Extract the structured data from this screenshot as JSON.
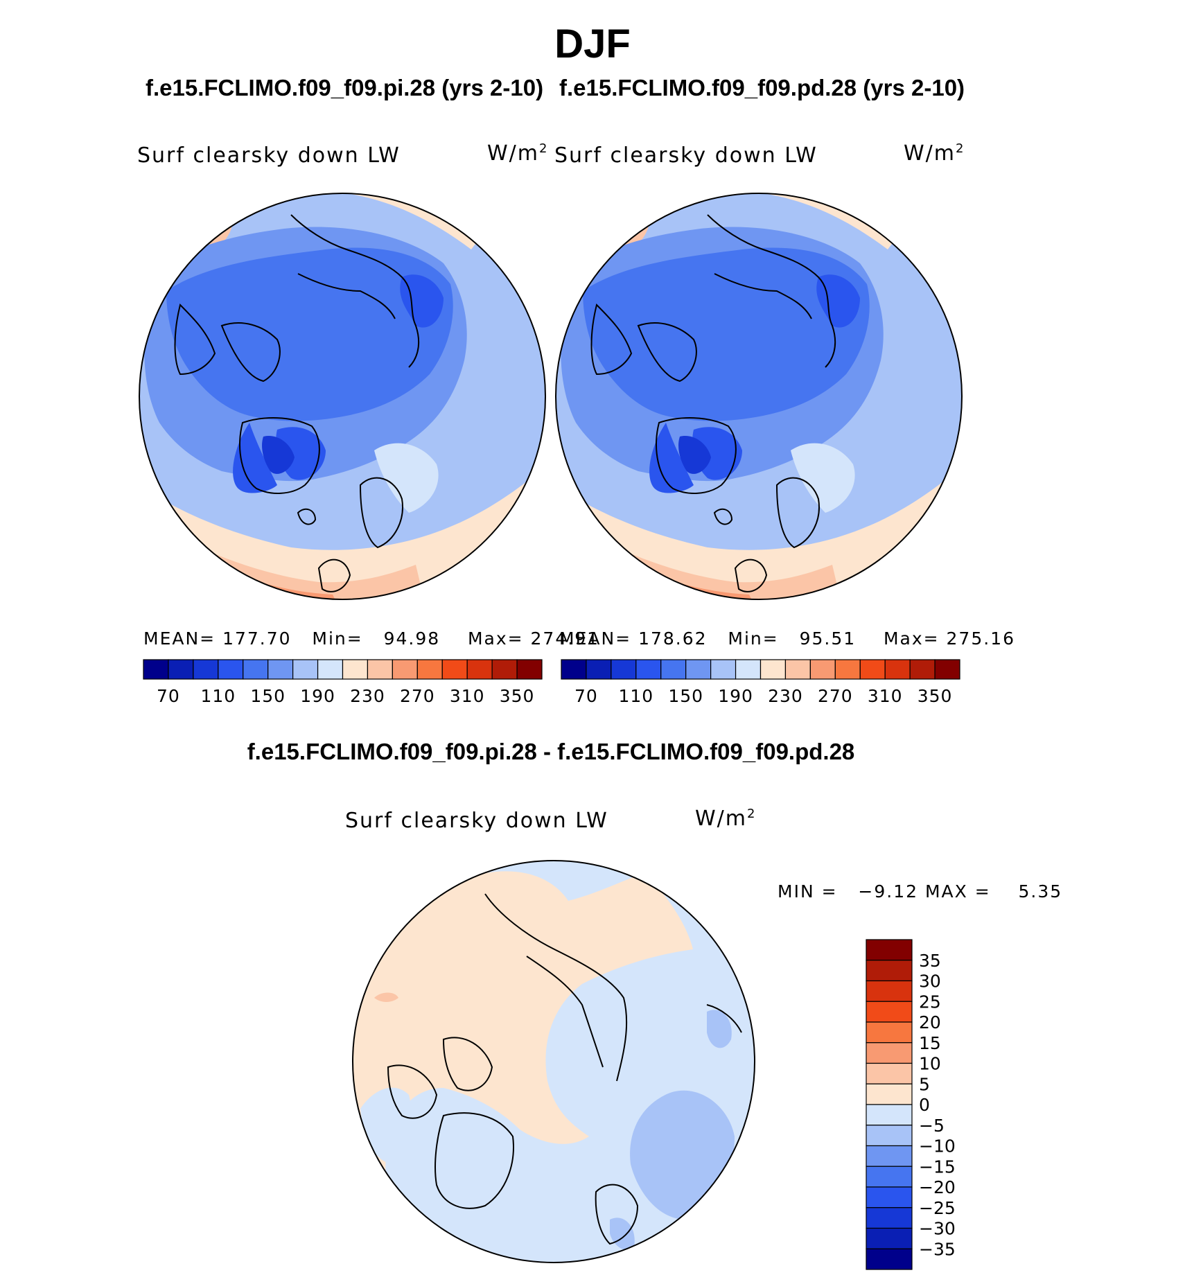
{
  "season_title": "DJF",
  "case_titles": {
    "pi": "f.e15.FCLIMO.f09_f09.pi.28 (yrs 2-10)",
    "pd": "f.e15.FCLIMO.f09_f09.pd.28 (yrs 2-10)",
    "diff": "f.e15.FCLIMO.f09_f09.pi.28 - f.e15.FCLIMO.f09_f09.pd.28"
  },
  "chart_data": [
    {
      "type": "heatmap",
      "projection": "north polar stereographic",
      "variable_label": "Surf clearsky down LW",
      "units_base": "W/m",
      "units_exp": "2",
      "stats": {
        "mean_label": "MEAN=",
        "mean": "177.70",
        "min_label": "Min=",
        "min": "94.98",
        "max_label": "Max=",
        "max": "274.91"
      },
      "colorbar_levels": [
        70,
        90,
        110,
        130,
        150,
        170,
        190,
        210,
        230,
        250,
        270,
        290,
        310,
        330,
        350
      ],
      "colorbar_tick_labels": [
        "70",
        "110",
        "150",
        "190",
        "230",
        "270",
        "310",
        "350"
      ]
    },
    {
      "type": "heatmap",
      "projection": "north polar stereographic",
      "variable_label": "Surf clearsky down LW",
      "units_base": "W/m",
      "units_exp": "2",
      "stats": {
        "mean_label": "MEAN=",
        "mean": "178.62",
        "min_label": "Min=",
        "min": "95.51",
        "max_label": "Max=",
        "max": "275.16"
      },
      "colorbar_levels": [
        70,
        90,
        110,
        130,
        150,
        170,
        190,
        210,
        230,
        250,
        270,
        290,
        310,
        330,
        350
      ],
      "colorbar_tick_labels": [
        "70",
        "110",
        "150",
        "190",
        "230",
        "270",
        "310",
        "350"
      ]
    },
    {
      "type": "heatmap",
      "projection": "north polar stereographic",
      "variable_label": "Surf clearsky down LW",
      "units_base": "W/m",
      "units_exp": "2",
      "stats": {
        "min_label": "MIN =",
        "min": "−9.12",
        "max_label": "MAX =",
        "max": "5.35"
      },
      "colorbar_levels": [
        -35,
        -30,
        -25,
        -20,
        -15,
        -10,
        -5,
        0,
        5,
        10,
        15,
        20,
        25,
        30,
        35
      ],
      "colorbar_tick_labels": [
        "35",
        "30",
        "25",
        "20",
        "15",
        "10",
        "5",
        "0",
        "−5",
        "−10",
        "−15",
        "−20",
        "−25",
        "−30",
        "−35"
      ]
    }
  ],
  "palette": [
    "#00008b",
    "#0a1fb4",
    "#1638d6",
    "#2a55ee",
    "#4675f0",
    "#6f96f2",
    "#a8c3f7",
    "#d4e5fb",
    "#fde5cf",
    "#fbc5a7",
    "#f89a72",
    "#f7773f",
    "#f14b18",
    "#d8330e",
    "#b01c08",
    "#820000"
  ]
}
